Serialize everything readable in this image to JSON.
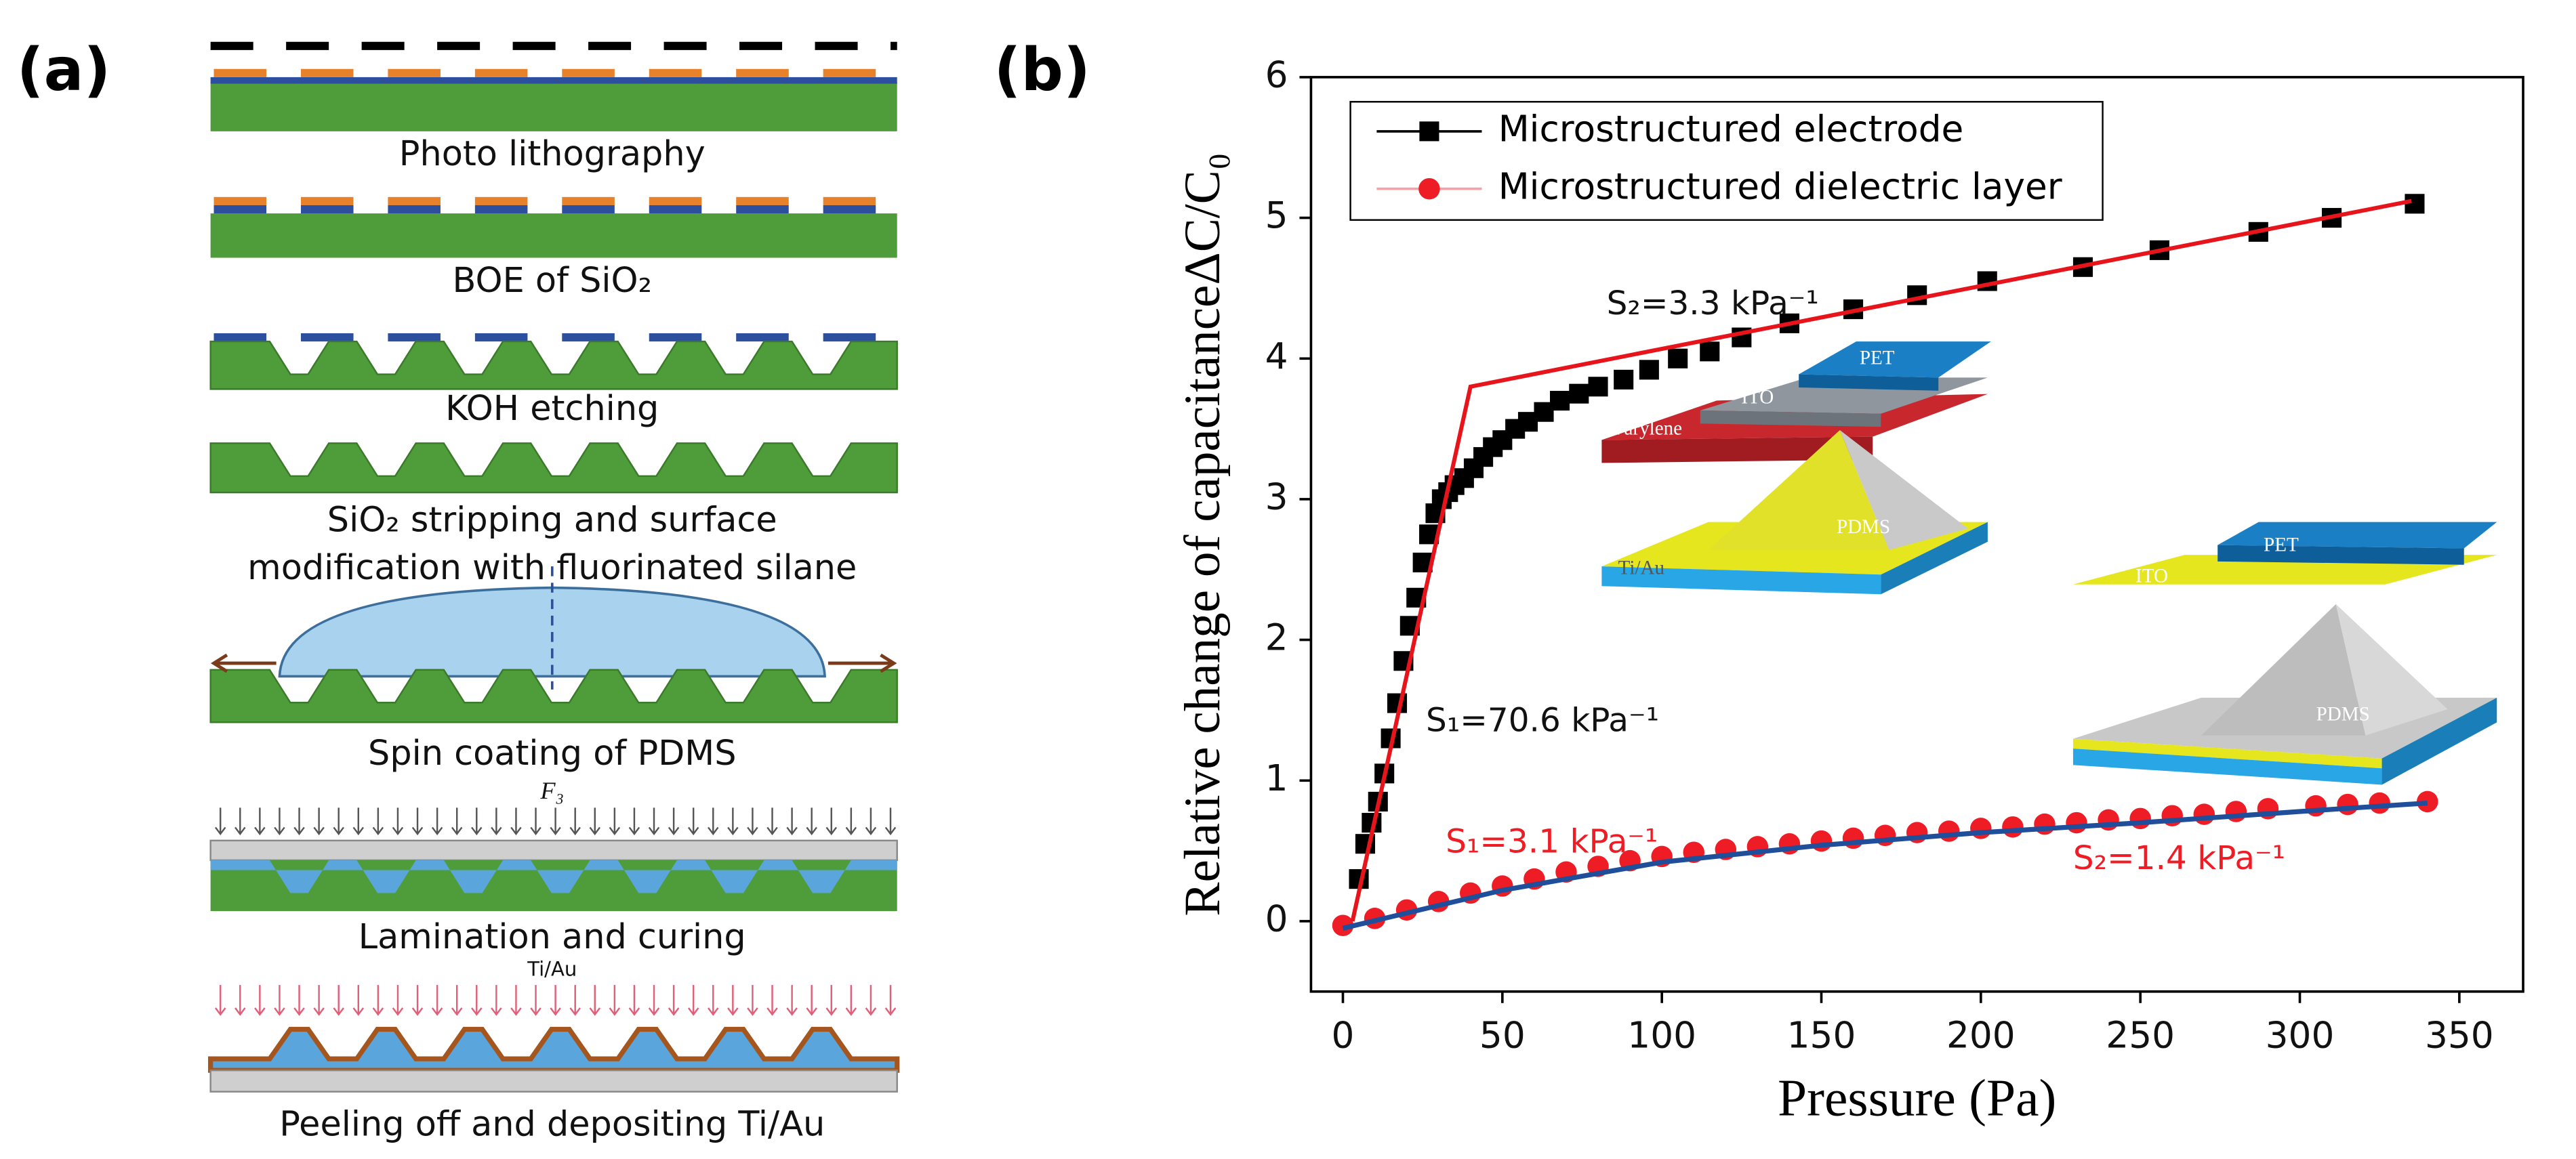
{
  "panel_a": {
    "label": "(a)",
    "steps": [
      [
        "Photo lithography"
      ],
      [
        "BOE of SiO₂"
      ],
      [
        "KOH etching"
      ],
      [
        "SiO₂ stripping and surface",
        "modification with fluorinated silane"
      ],
      [
        "Spin coating of PDMS"
      ],
      [
        "Lamination and curing"
      ],
      [
        "Peeling off and depositing Ti/Au"
      ]
    ],
    "force_label": "F₃",
    "metal_label": "Ti/Au"
  },
  "chart_data": {
    "type": "scatter",
    "panel_label": "(b)",
    "xlabel": "Pressure (Pa)",
    "ylabel": "Relative change of capacitanceΔC/C₀",
    "xlim": [
      -10,
      370
    ],
    "ylim": [
      -0.5,
      6
    ],
    "xticks": [
      0,
      50,
      100,
      150,
      200,
      250,
      300,
      350
    ],
    "yticks": [
      0,
      1,
      2,
      3,
      4,
      5,
      6
    ],
    "legend": "upper left",
    "series": [
      {
        "name": "Microstructured electrode",
        "color": "#000000",
        "marker": "square",
        "x": [
          5,
          7,
          9,
          11,
          13,
          15,
          17,
          19,
          21,
          23,
          25,
          27,
          29,
          31,
          33,
          35,
          38,
          41,
          44,
          47,
          50,
          54,
          58,
          63,
          68,
          74,
          80,
          88,
          96,
          105,
          115,
          125,
          140,
          160,
          180,
          202,
          232,
          256,
          287,
          310,
          336
        ],
        "values": [
          0.3,
          0.55,
          0.7,
          0.85,
          1.05,
          1.3,
          1.55,
          1.85,
          2.1,
          2.3,
          2.55,
          2.75,
          2.9,
          3.0,
          3.05,
          3.1,
          3.15,
          3.22,
          3.3,
          3.37,
          3.42,
          3.5,
          3.55,
          3.62,
          3.7,
          3.75,
          3.8,
          3.85,
          3.92,
          4.0,
          4.05,
          4.15,
          4.25,
          4.35,
          4.45,
          4.55,
          4.65,
          4.77,
          4.9,
          5.0,
          5.1
        ],
        "fit": {
          "color": "#e8141b",
          "x": [
            3,
            40,
            335
          ],
          "values": [
            0,
            3.8,
            5.12
          ]
        }
      },
      {
        "name": "Microstructured dielectric layer",
        "color": "#ee1c25",
        "marker": "circle",
        "x": [
          0,
          10,
          20,
          30,
          40,
          50,
          60,
          70,
          80,
          90,
          100,
          110,
          120,
          130,
          140,
          150,
          160,
          170,
          180,
          190,
          200,
          210,
          220,
          230,
          240,
          250,
          260,
          270,
          280,
          290,
          305,
          315,
          325,
          340
        ],
        "values": [
          -0.03,
          0.02,
          0.08,
          0.14,
          0.2,
          0.25,
          0.3,
          0.35,
          0.39,
          0.43,
          0.46,
          0.49,
          0.51,
          0.53,
          0.55,
          0.57,
          0.59,
          0.61,
          0.63,
          0.64,
          0.66,
          0.67,
          0.69,
          0.7,
          0.72,
          0.73,
          0.75,
          0.76,
          0.78,
          0.8,
          0.82,
          0.83,
          0.84,
          0.85
        ],
        "fit": {
          "color": "#1f4e9a",
          "x": [
            0,
            50,
            100,
            150,
            200,
            250,
            300,
            340
          ],
          "values": [
            -0.05,
            0.22,
            0.42,
            0.54,
            0.63,
            0.7,
            0.78,
            0.84
          ]
        }
      }
    ],
    "annotations": [
      {
        "text": "S₂=3.3 kPa⁻¹",
        "color": "#111111"
      },
      {
        "text": "S₁=70.6 kPa⁻¹",
        "color": "#111111"
      },
      {
        "text": "S₁=3.1 kPa⁻¹",
        "color": "#ee1c25"
      },
      {
        "text": "S₂=1.4 kPa⁻¹",
        "color": "#ee1c25"
      }
    ],
    "insets": [
      {
        "labels": [
          "PET",
          "ITO",
          "Parylene",
          "Ti/Au",
          "PDMS"
        ]
      },
      {
        "labels": [
          "PET",
          "ITO",
          "PDMS"
        ]
      }
    ]
  }
}
